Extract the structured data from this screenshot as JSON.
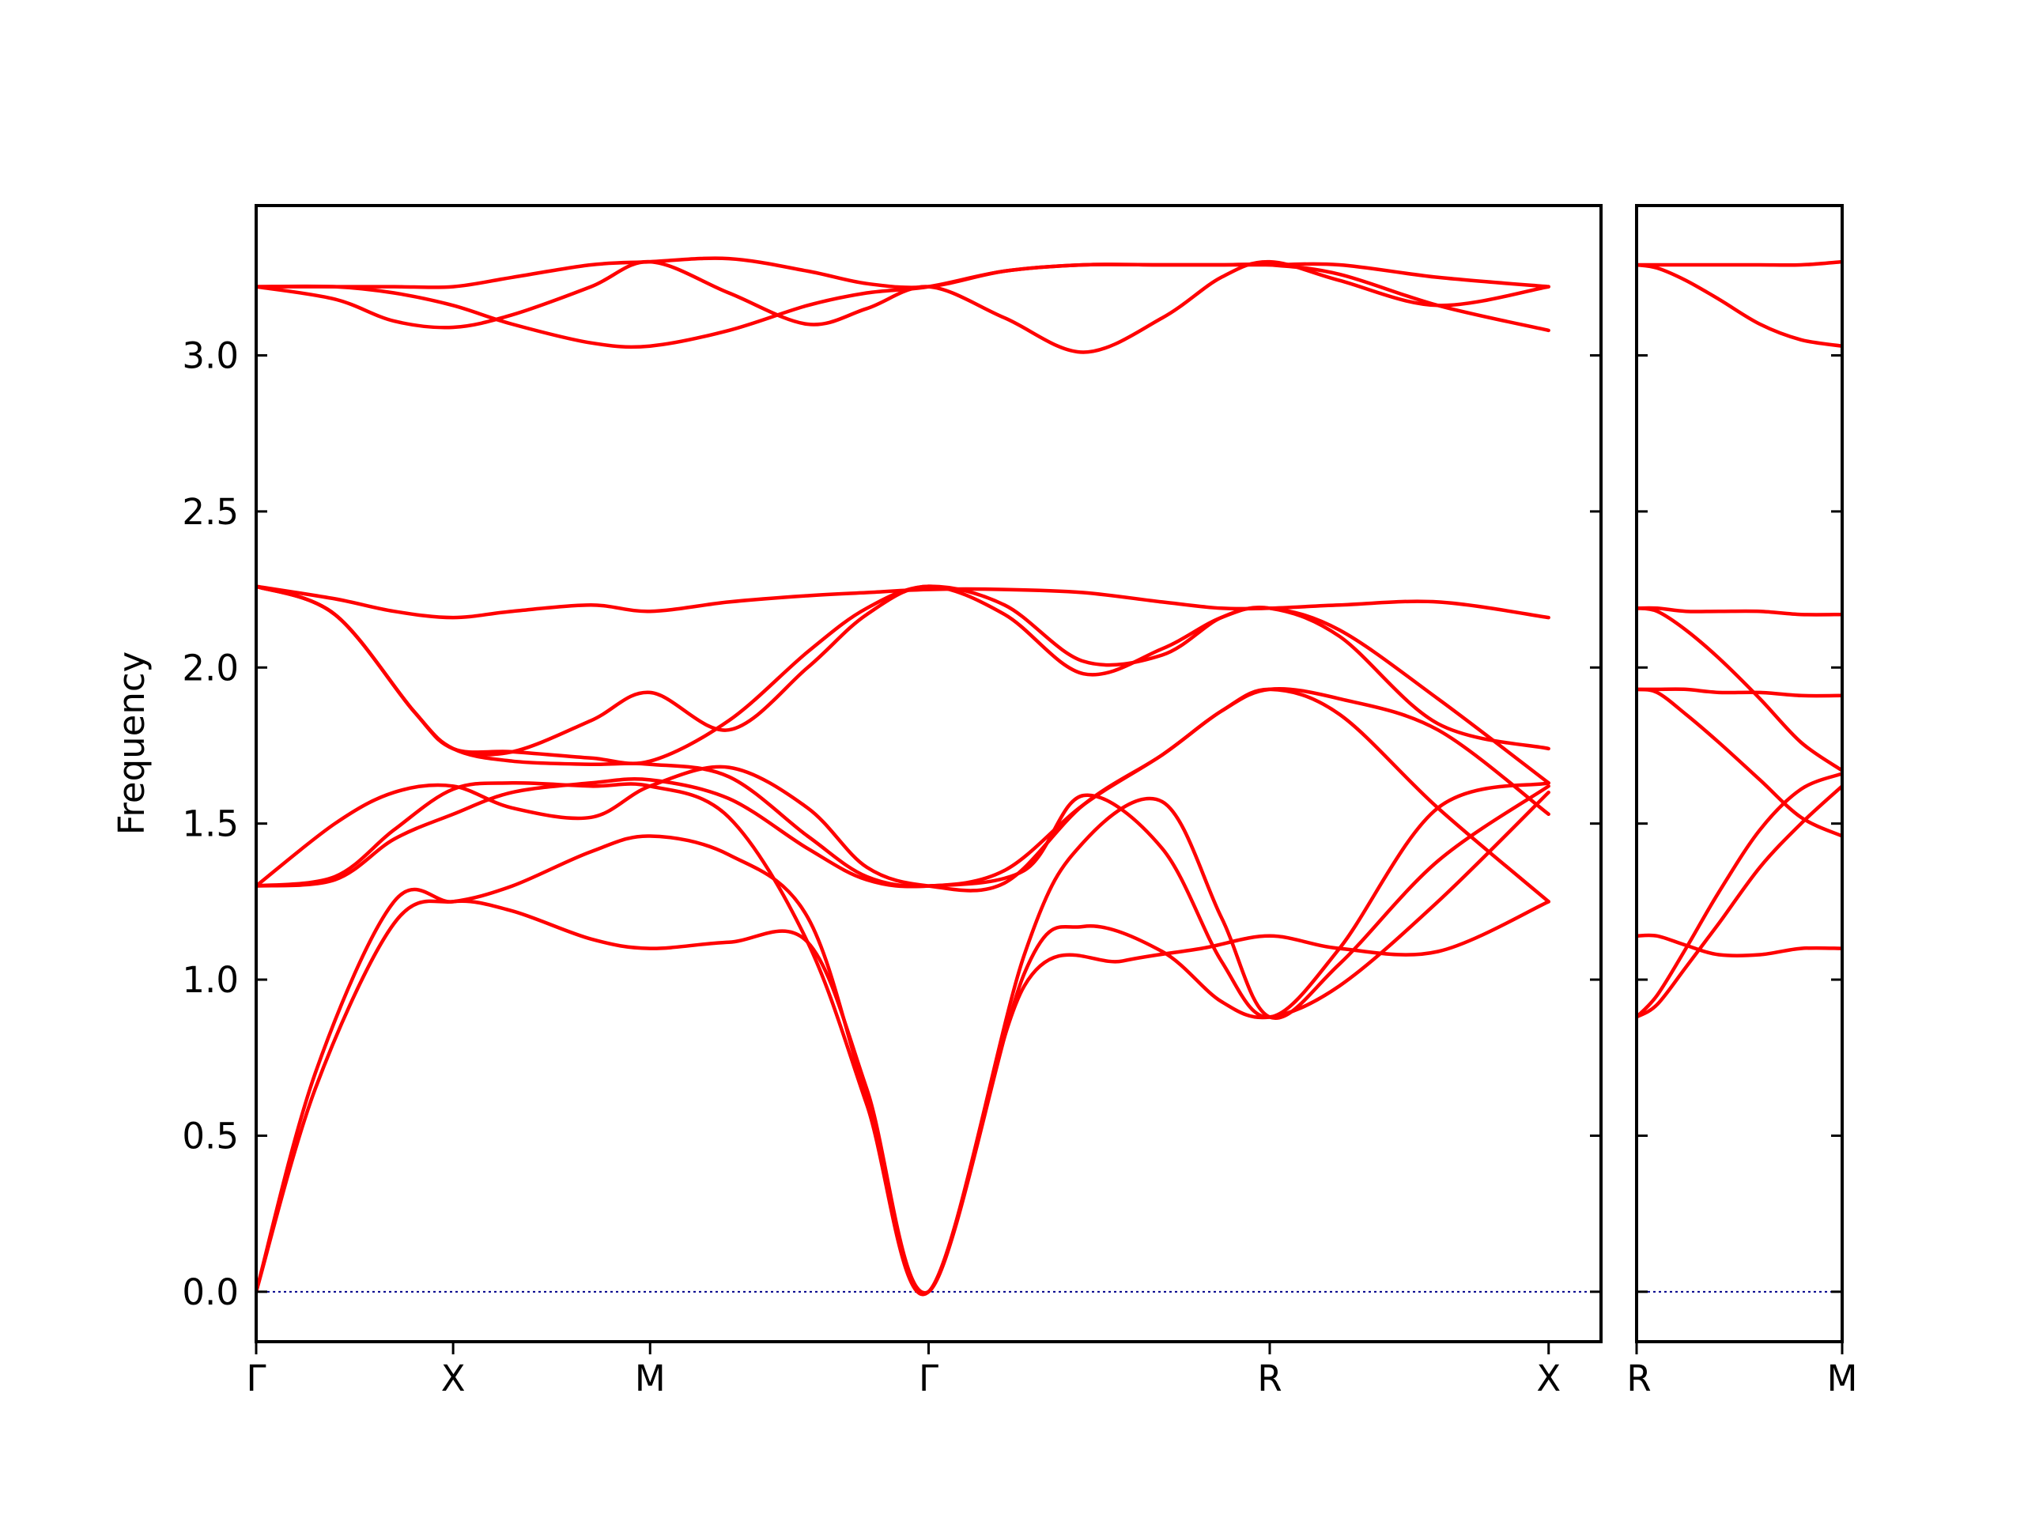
{
  "chart_data": {
    "type": "line",
    "ylabel": "Frequency",
    "ylim": [
      -0.16,
      3.48
    ],
    "yticks": [
      0.0,
      0.5,
      1.0,
      1.5,
      2.0,
      2.5,
      3.0
    ],
    "ytick_labels": [
      "0.0",
      "0.5",
      "1.0",
      "1.5",
      "2.0",
      "2.5",
      "3.0"
    ],
    "band_color": "#ff0000",
    "zero_line_color": "#00008b",
    "grid": false,
    "panels": [
      {
        "x_range": [
          0,
          3.414
        ],
        "x_ticks": [
          0,
          0.5,
          1.0,
          1.707,
          2.573,
          3.281
        ],
        "x_labels": [
          "Γ",
          "X",
          "M",
          "Γ",
          "R",
          "X"
        ],
        "series": [
          {
            "x": [
              0,
              0.15,
              0.35,
              0.5,
              0.65,
              0.85,
              1.0,
              1.2,
              1.4,
              1.55,
              1.707,
              1.95,
              2.2,
              2.4,
              2.573,
              2.75,
              3.0,
              3.281
            ],
            "y": [
              0,
              0.65,
              1.18,
              1.25,
              1.22,
              1.13,
              1.1,
              1.12,
              1.12,
              0.65,
              0,
              0.98,
              1.06,
              1.1,
              1.14,
              1.1,
              1.09,
              1.25
            ]
          },
          {
            "x": [
              0,
              0.15,
              0.35,
              0.5,
              0.65,
              0.85,
              1.0,
              1.2,
              1.4,
              1.55,
              1.707,
              1.95,
              2.1,
              2.3,
              2.45,
              2.573,
              2.75,
              3.0,
              3.281
            ],
            "y": [
              0,
              0.7,
              1.25,
              1.25,
              1.3,
              1.41,
              1.46,
              1.4,
              1.2,
              0.62,
              0,
              1.02,
              1.17,
              1.09,
              0.93,
              0.88,
              0.98,
              1.25,
              1.6
            ]
          },
          {
            "x": [
              0,
              0.2,
              0.35,
              0.5,
              0.65,
              0.85,
              1.0,
              1.2,
              1.4,
              1.55,
              1.707,
              1.95,
              2.1,
              2.3,
              2.45,
              2.573,
              2.75,
              3.0,
              3.281
            ],
            "y": [
              1.3,
              1.33,
              1.48,
              1.61,
              1.63,
              1.62,
              1.62,
              1.52,
              1.12,
              0.6,
              0,
              1.08,
              1.44,
              1.57,
              1.2,
              0.88,
              1.05,
              1.38,
              1.62
            ]
          },
          {
            "x": [
              0,
              0.2,
              0.35,
              0.5,
              0.65,
              0.85,
              1.0,
              1.2,
              1.4,
              1.55,
              1.707,
              1.95,
              2.1,
              2.3,
              2.45,
              2.573,
              2.75,
              3.0,
              3.281
            ],
            "y": [
              1.3,
              1.32,
              1.45,
              1.53,
              1.6,
              1.63,
              1.64,
              1.58,
              1.42,
              1.32,
              1.3,
              1.35,
              1.59,
              1.42,
              1.06,
              0.88,
              1.1,
              1.55,
              1.63
            ]
          },
          {
            "x": [
              0,
              0.2,
              0.35,
              0.5,
              0.65,
              0.85,
              1.0,
              1.2,
              1.4,
              1.55,
              1.707,
              1.9,
              2.1,
              2.3,
              2.45,
              2.573,
              2.75,
              3.0,
              3.281
            ],
            "y": [
              1.3,
              1.5,
              1.6,
              1.62,
              1.55,
              1.52,
              1.62,
              1.68,
              1.55,
              1.36,
              1.3,
              1.31,
              1.56,
              1.72,
              1.86,
              1.93,
              1.85,
              1.55,
              1.25
            ]
          },
          {
            "x": [
              0,
              0.2,
              0.4,
              0.5,
              0.65,
              0.85,
              1.0,
              1.2,
              1.4,
              1.55,
              1.707,
              1.9,
              2.1,
              2.3,
              2.45,
              2.573,
              2.75,
              3.0,
              3.281
            ],
            "y": [
              2.26,
              2.17,
              1.86,
              1.74,
              1.7,
              1.69,
              1.69,
              1.65,
              1.46,
              1.33,
              1.3,
              1.35,
              1.56,
              1.72,
              1.86,
              1.93,
              1.9,
              1.8,
              1.53
            ]
          },
          {
            "x": [
              0,
              0.2,
              0.4,
              0.5,
              0.65,
              0.85,
              1.0,
              1.2,
              1.4,
              1.55,
              1.707,
              1.9,
              2.1,
              2.3,
              2.45,
              2.573,
              2.75,
              3.0,
              3.281
            ],
            "y": [
              2.26,
              2.17,
              1.86,
              1.74,
              1.73,
              1.71,
              1.7,
              1.83,
              2.05,
              2.19,
              2.26,
              2.2,
              2.02,
              2.04,
              2.16,
              2.19,
              2.12,
              1.9,
              1.63
            ]
          },
          {
            "x": [
              0,
              0.2,
              0.4,
              0.5,
              0.65,
              0.85,
              1.0,
              1.2,
              1.4,
              1.55,
              1.707,
              1.9,
              2.1,
              2.3,
              2.45,
              2.573,
              2.75,
              3.0,
              3.281
            ],
            "y": [
              2.26,
              2.17,
              1.86,
              1.74,
              1.73,
              1.83,
              1.92,
              1.8,
              2.0,
              2.17,
              2.26,
              2.17,
              1.98,
              2.06,
              2.16,
              2.19,
              2.1,
              1.82,
              1.74
            ]
          },
          {
            "x": [
              0,
              0.2,
              0.35,
              0.5,
              0.65,
              0.85,
              1.0,
              1.2,
              1.4,
              1.55,
              1.707,
              1.9,
              2.1,
              2.3,
              2.45,
              2.573,
              2.75,
              3.0,
              3.281
            ],
            "y": [
              2.26,
              2.22,
              2.18,
              2.16,
              2.18,
              2.2,
              2.18,
              2.21,
              2.23,
              2.24,
              2.25,
              2.25,
              2.24,
              2.21,
              2.19,
              2.19,
              2.2,
              2.21,
              2.16
            ]
          },
          {
            "x": [
              0,
              0.2,
              0.35,
              0.5,
              0.65,
              0.85,
              1.0,
              1.2,
              1.4,
              1.55,
              1.707,
              1.9,
              2.1,
              2.3,
              2.45,
              2.573,
              2.75,
              3.0,
              3.281
            ],
            "y": [
              3.22,
              3.18,
              3.11,
              3.09,
              3.13,
              3.22,
              3.3,
              3.2,
              3.1,
              3.15,
              3.22,
              3.12,
              3.01,
              3.12,
              3.25,
              3.3,
              3.24,
              3.16,
              3.22
            ]
          },
          {
            "x": [
              0,
              0.2,
              0.35,
              0.5,
              0.65,
              0.85,
              1.0,
              1.2,
              1.4,
              1.55,
              1.707,
              1.9,
              2.1,
              2.3,
              2.45,
              2.573,
              2.75,
              3.0,
              3.281
            ],
            "y": [
              3.22,
              3.22,
              3.2,
              3.16,
              3.1,
              3.04,
              3.03,
              3.08,
              3.16,
              3.2,
              3.22,
              3.27,
              3.29,
              3.29,
              3.29,
              3.29,
              3.26,
              3.16,
              3.08
            ]
          },
          {
            "x": [
              0,
              0.2,
              0.35,
              0.5,
              0.65,
              0.85,
              1.0,
              1.2,
              1.4,
              1.55,
              1.707,
              1.9,
              2.1,
              2.3,
              2.45,
              2.573,
              2.75,
              3.0,
              3.281
            ],
            "y": [
              3.22,
              3.22,
              3.22,
              3.22,
              3.25,
              3.29,
              3.3,
              3.31,
              3.27,
              3.23,
              3.22,
              3.27,
              3.29,
              3.29,
              3.29,
              3.29,
              3.29,
              3.25,
              3.22
            ]
          }
        ],
        "zero_line": true
      },
      {
        "x_range": [
          0,
          0.5
        ],
        "x_ticks": [
          0,
          0.5
        ],
        "x_labels": [
          "R",
          "M"
        ],
        "series": [
          {
            "x": [
              0,
              0.05,
              0.12,
              0.2,
              0.3,
              0.4,
              0.5
            ],
            "y": [
              1.14,
              1.14,
              1.11,
              1.08,
              1.08,
              1.1,
              1.1
            ]
          },
          {
            "x": [
              0,
              0.05,
              0.12,
              0.2,
              0.3,
              0.4,
              0.5
            ],
            "y": [
              0.88,
              0.92,
              1.04,
              1.18,
              1.36,
              1.5,
              1.62
            ]
          },
          {
            "x": [
              0,
              0.05,
              0.12,
              0.2,
              0.3,
              0.4,
              0.5
            ],
            "y": [
              0.88,
              0.95,
              1.1,
              1.28,
              1.48,
              1.61,
              1.66
            ]
          },
          {
            "x": [
              0,
              0.05,
              0.12,
              0.2,
              0.3,
              0.4,
              0.5
            ],
            "y": [
              1.93,
              1.92,
              1.85,
              1.76,
              1.64,
              1.52,
              1.46
            ]
          },
          {
            "x": [
              0,
              0.05,
              0.12,
              0.2,
              0.3,
              0.4,
              0.5
            ],
            "y": [
              1.93,
              1.93,
              1.93,
              1.92,
              1.92,
              1.91,
              1.91
            ]
          },
          {
            "x": [
              0,
              0.05,
              0.12,
              0.2,
              0.3,
              0.4,
              0.5
            ],
            "y": [
              2.19,
              2.18,
              2.12,
              2.03,
              1.9,
              1.76,
              1.67
            ]
          },
          {
            "x": [
              0,
              0.05,
              0.12,
              0.2,
              0.3,
              0.4,
              0.5
            ],
            "y": [
              2.19,
              2.19,
              2.18,
              2.18,
              2.18,
              2.17,
              2.17
            ]
          },
          {
            "x": [
              0,
              0.05,
              0.12,
              0.2,
              0.3,
              0.4,
              0.5
            ],
            "y": [
              3.29,
              3.28,
              3.24,
              3.18,
              3.1,
              3.05,
              3.03
            ]
          },
          {
            "x": [
              0,
              0.05,
              0.12,
              0.2,
              0.3,
              0.4,
              0.5
            ],
            "y": [
              3.29,
              3.29,
              3.29,
              3.29,
              3.29,
              3.29,
              3.3
            ]
          }
        ],
        "zero_line": true
      }
    ]
  }
}
